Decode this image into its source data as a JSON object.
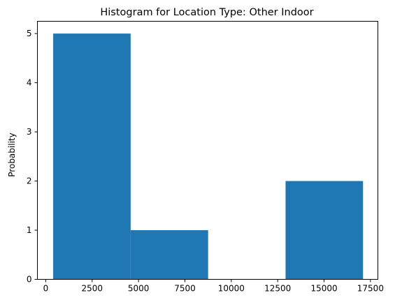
{
  "chart_data": {
    "type": "bar",
    "title": "Histogram for Location Type: Other Indoor",
    "xlabel": "",
    "ylabel": "Probability",
    "xlim": [
      -450,
      17900
    ],
    "ylim": [
      0,
      5.25
    ],
    "bins": [
      {
        "x0": 400,
        "x1": 4575,
        "value": 5
      },
      {
        "x0": 4575,
        "x1": 8750,
        "value": 1
      },
      {
        "x0": 8750,
        "x1": 12925,
        "value": 0
      },
      {
        "x0": 12925,
        "x1": 17100,
        "value": 2
      }
    ],
    "x_ticks": [
      0,
      2500,
      5000,
      7500,
      10000,
      12500,
      15000,
      17500
    ],
    "x_tick_labels": [
      "0",
      "2500",
      "5000",
      "7500",
      "10000",
      "12500",
      "15000",
      "17500"
    ],
    "y_ticks": [
      0,
      1,
      2,
      3,
      4,
      5
    ],
    "y_tick_labels": [
      "0",
      "1",
      "2",
      "3",
      "4",
      "5"
    ],
    "bar_color": "#1f77b4",
    "grid": false,
    "legend": false
  }
}
